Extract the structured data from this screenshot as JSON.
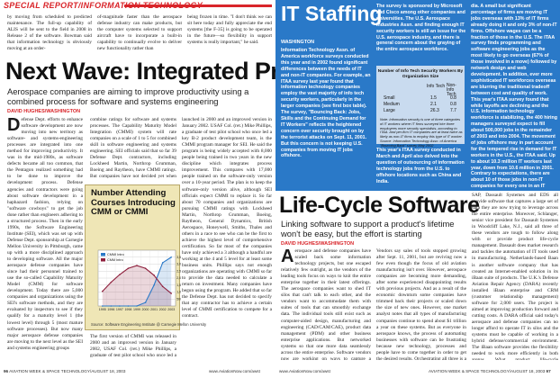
{
  "left": {
    "section_header": "SPECIAL REPORT/INFORMATION TECHNOLOGY",
    "top_text": [
      "by moving from scheduled to predicted maintenance. The full-up capability of ALIS will be sent to the field in 2008 in Release 2 of the software. Bowman said that information technology is obviously moving at an order-",
      "of-magnitude faster than the aerospace defense industry can make products, but the computer systems selected to support aircraft have to incorporate a built-in capability to continually evolve to deliver new functionality rather than",
      "being frozen in time. \"I don't think we can sit here today and fully appreciate the end systems [the F-35] is going to be operated in the future—so flexibility in support systems is really important,\" he said."
    ],
    "title": "Next Wave: Integrated Processes",
    "deck": "Aerospace companies are aiming to improve productivity using a combined process for software and systems engineering",
    "byline": "DAVID HUGHES/WASHINGTON",
    "col1_dropcap": "D",
    "col1_text": "efense Dept. efforts to enhance software development are now moving into new territory as software- and systems-engineering processes are integrated into one method for improving productivity. It was in the mid-1980s, as software defects became all too common, that the Pentagon realized something had to be done to improve the development process. Defense agencies and contractors were going about software development in a haphazard fashion, relying on \"software cowboys\" to get the job done rather than engineers adhering to a structured process. Then in the early 1990s, the Software Engineering Institute (SEI), which was set up with Defense Dept. sponsorship at Carnegie Mellon University in Pittsburgh, came up with a more disciplined approach to developing software. All the major aerospace defense companies have since had their personnel trained to use the so-called Capability Maturity Model (CMM) for software development. Today there are 5,000 companies and organizations using the SEI's software methods, and they are evaluated by inspectors to see if they qualify for a maturity level 1 (the lowest level) through 5 (most mature software processes). But now many major aerospace defense companies are moving to the next level as the SEI and systems engineering groups",
    "col2_text": "combine ratings for software and systems processes. The Capability Maturity Model Integration (CMMI) system will rate companies on a scale of 1 to 5 for combined skill in software engineering and systems engineering. SEI officials said that so far 39 Defense Dept. contractors, including Lockheed Martin, Northrop Grumman, Boeing and Raytheon, have CMMI ratings. But companies have not decided yet when to transition some well-known programs, such as the Joint Strike Fighter, from a CMM to a CMMI approach.",
    "col2b_text": "The first version of CMMI was released in 2000 and an improved version in January 2002, USAF Col. (ret.) Mike Phillips, a graduate of test pilot school who once led a key B-2 product development team, is the CMMI program manager for SEI.",
    "col3_text": "launched in 2000 and an improved version in January 2002. USAF Col. (ret.) Mike Phillips, a graduate of test pilot school who once led a key B-2 product development team, is the CMMI program manager for SEI. He said the program is being widely accepted with 8,000 people being trained in two years in the new discipline which integrates process improvement. This compares with 17,000 people trained on the software-only version over a 10-year period. The plan is to keep the software-only version alive, although SEI officials expect CMMI to replace it. So far about 70 companies and organizations are pursuing CMMI ratings with Lockheed Martin, Northrop Grumman, Boeing, Raytheon, General Dynamics, British Aerospace, Honeywell, Smiths, Thales and others in a race to see who can be the first to achieve the highest level of comprehensive certification. So far most of the companies have only achieved a 3 although a handful are working at the 4 and 5 level for at least some business units. Phillips says not enough organizations are operating with CMMI so far to provide the data needed to calculate a return on investment. Many companies have begun using the program. He added that so far the Defense Dept. has not decided to specify that any contractor has to achieve a certain level of CMMI certification to compete for a contract.",
    "footer_page": "96",
    "footer_text": "AVIATION WEEK & SPACE TECHNOLOGY/AUGUST 18, 2003",
    "footer_url": "www.AviationNow.com/awst"
  },
  "chart_data": {
    "type": "line",
    "title": "Number Attending Courses Introducing CMM or CMMI",
    "x": [
      1995,
      1996,
      1997,
      1998,
      1999,
      2000,
      2001,
      2002,
      2003
    ],
    "x_tick_labels": [
      "1995",
      "1996",
      "1997",
      "1998",
      "1999",
      "2000",
      "2001",
      "2002",
      "2003"
    ],
    "series": [
      {
        "name": "CMMI Intro",
        "values": [
          0,
          0,
          0,
          0,
          0,
          250,
          1500,
          3100,
          3500
        ]
      },
      {
        "name": "CMM Intro",
        "values": [
          1050,
          1700,
          2250,
          2700,
          2900,
          2700,
          2200,
          1400,
          900
        ]
      }
    ],
    "y_tick_labels": [
      "500",
      "1,000",
      "1,500",
      "2,000",
      "2,500",
      "3,000",
      "3,500"
    ],
    "ylim": [
      0,
      4000
    ],
    "grid": true,
    "legend": "upper-left",
    "source": "Source: Software Engineering Institute @ Carnegie Mellon University",
    "colors": {
      "cmmi": "#2a79c8",
      "cmm": "#8e1f3c",
      "background": "#efe6b6"
    }
  },
  "right": {
    "staff": {
      "title": "IT Staffing",
      "place": "WASHINGTON",
      "col1": "Information Technology Assn. of America workforce surveys conducted this year and in 2002 found significant differences between the needs of IT and non-IT companies. For example, an ITAA survey last year found that information technology companies employ the vast majority of info tech security workers, particularly in the larger companies (see first box table). The survey, \"Bouncing Back: Jobs, Skills and the Continuing Demand for IT Workers\" reflects the heightened concern over security brought on by the terrorist attacks on Sept. 11, 2001. But this concern is not keeping U.S. companies from moving IT jobs offshore.",
      "col2_top": "The survey is sponsored by Microsoft and Cisco among other companies and universities. The U.S. Aerospace Industries Assn. and finding enough IT security workers is still an issue for the U.S. aerospace industry, and there is general concern about the graying of the entire aerospace workforce.",
      "col2_bottom": "This year's ITAA survey conducted in March and April also delved into the question of outsourcing of information technology jobs from the U.S. to offshore locations such as China and India.",
      "col3": "dia. A small but significant percentage of firms are moving IT jobs overseas with 13% of IT firms already doing it and only 3% of non-IT firms. Offshore wages can be a fraction of those in the U.S. The ITAA survey finds programming and software engineering jobs as the most likely to go overseas (67% of those involved in a move) followed by network design and web development. In addition, ever more sophisticated IT workforces overseas are blurring the traditional tradeoff between cost and quality of work. This year's ITAA survey found that while layoffs are declining and the U.S. information technology workforce is stabilizing, the 400 hiring managers surveyed expect to fill about 500,000 jobs in the remainder of 2003 and into 2004. The movement of jobs offshore may in part account for the tempered rise in demand for IT workers in the U.S., the ITAA said. Up to about 10.3 million IT workers last year, down from 10.6 million in 2001. Contrary to expectations, there are about 10 of those jobs in non-IT companies for every one in an IT company."
    },
    "table": {
      "title": "Number of Info Tech Security Workers By Organization Size",
      "headers": [
        "",
        "Info Tech",
        "Non-Info Tech"
      ],
      "rows": [
        [
          "Small",
          "1.5",
          "0.8"
        ],
        [
          "Medium",
          "2.1",
          "0.8"
        ],
        [
          "Large",
          "26.3",
          "7.7"
        ]
      ],
      "note": "Note: Information security is one of three categories of IT workers where IT firms surveyed hire three employees more security specialists, according to ITAA. And per-firm IT companies are at least twice as likely as non-IT firms to employ this type of IT worker. Source: Information Technology Assn. of America \"Bouncing Back\" survey May 2002"
    },
    "lc": {
      "title": "Life-Cycle Software",
      "deck": "Linking software to support a product's lifetime won't be easy, but the effort is starting",
      "byline": "DAVID HUGHES/WASHINGTON",
      "col1_dropcap": "A",
      "col1": "erospace and defense companies have scaled back some information technology projects, but one escaped relatively few outright, as the vendors of the leading tools focus on ways to knit the entire enterprise together in their latest offerings. The aerospace companies want to shed IT silos that can't talk to each other, and the vendors want to accommodate them with suites of tools that can smoothly exchange data. The individual tools still exist such as computer-aided design, manufacturing and engineering (CAD/CAM/CAE), product data management (PDM) and other business enterprise applications. But networked systems so that one more data seamlessly across the entire enterprise. Software vendors now are working on ways to capture a product's entire life cycle.",
      "col2": "Vendors say sales of tools stopped growing after Sept. 11, 2001, but are reviving now a few even though the focus of old aviation manufacturing isn't over. However, aerospace companies are becoming more demanding, after some experienced disappointing results with previous projects. And as a result of the economic downturn some companies have trimmed back their projects or scaled down the size of new ones. However, one market analyst notes that all types of manufacturing companies continue to spend about $1 trillion a year on these systems. But as everyone in aerospace knows, the process of automating businesses with software can be frustrating because new technology, processes and people have to come together in order to get the desired results. Orchestrating all three is a daunting task.",
      "col3": "SAP, Dassault Systemes and EDS all provide software that captures a large set of data they are now trying to leverage across the entire enterprise. Moreover, Schlanger, senior vice president for Dassault Systemes in Woodcliff Lake, N.J., said all three of these vendors are tough to follow along with or provide product life-cycle management. Dassault does market research and tackles the automation of IT tools used in manufacturing. Netherlands-based Baan is another software company that has created an Internet-enabled solution in its iBaan suite of products. The U.K.'s Defense Aviation Repair Agency (DARA) recently installed iBaan enterprise and CRM (customer relationship management) software for 2,000 users. The project is aimed at improving production forward and cutting costs. A DARA official said today's aerospace and defense companies can no longer afford to operate IT in silos and the systems must be capable of working in a hybrid defense/commercial environment. The iBaan software provides the flexibility needed to work more efficiently in both arenas. What product life-cycle management is all about is controlling all of the data",
      "footer_page": "97",
      "footer_text": "AVIATION WEEK & SPACE TECHNOLOGY/AUGUST 18, 2003",
      "footer_url": "www.AviationNow.com/awst"
    }
  }
}
